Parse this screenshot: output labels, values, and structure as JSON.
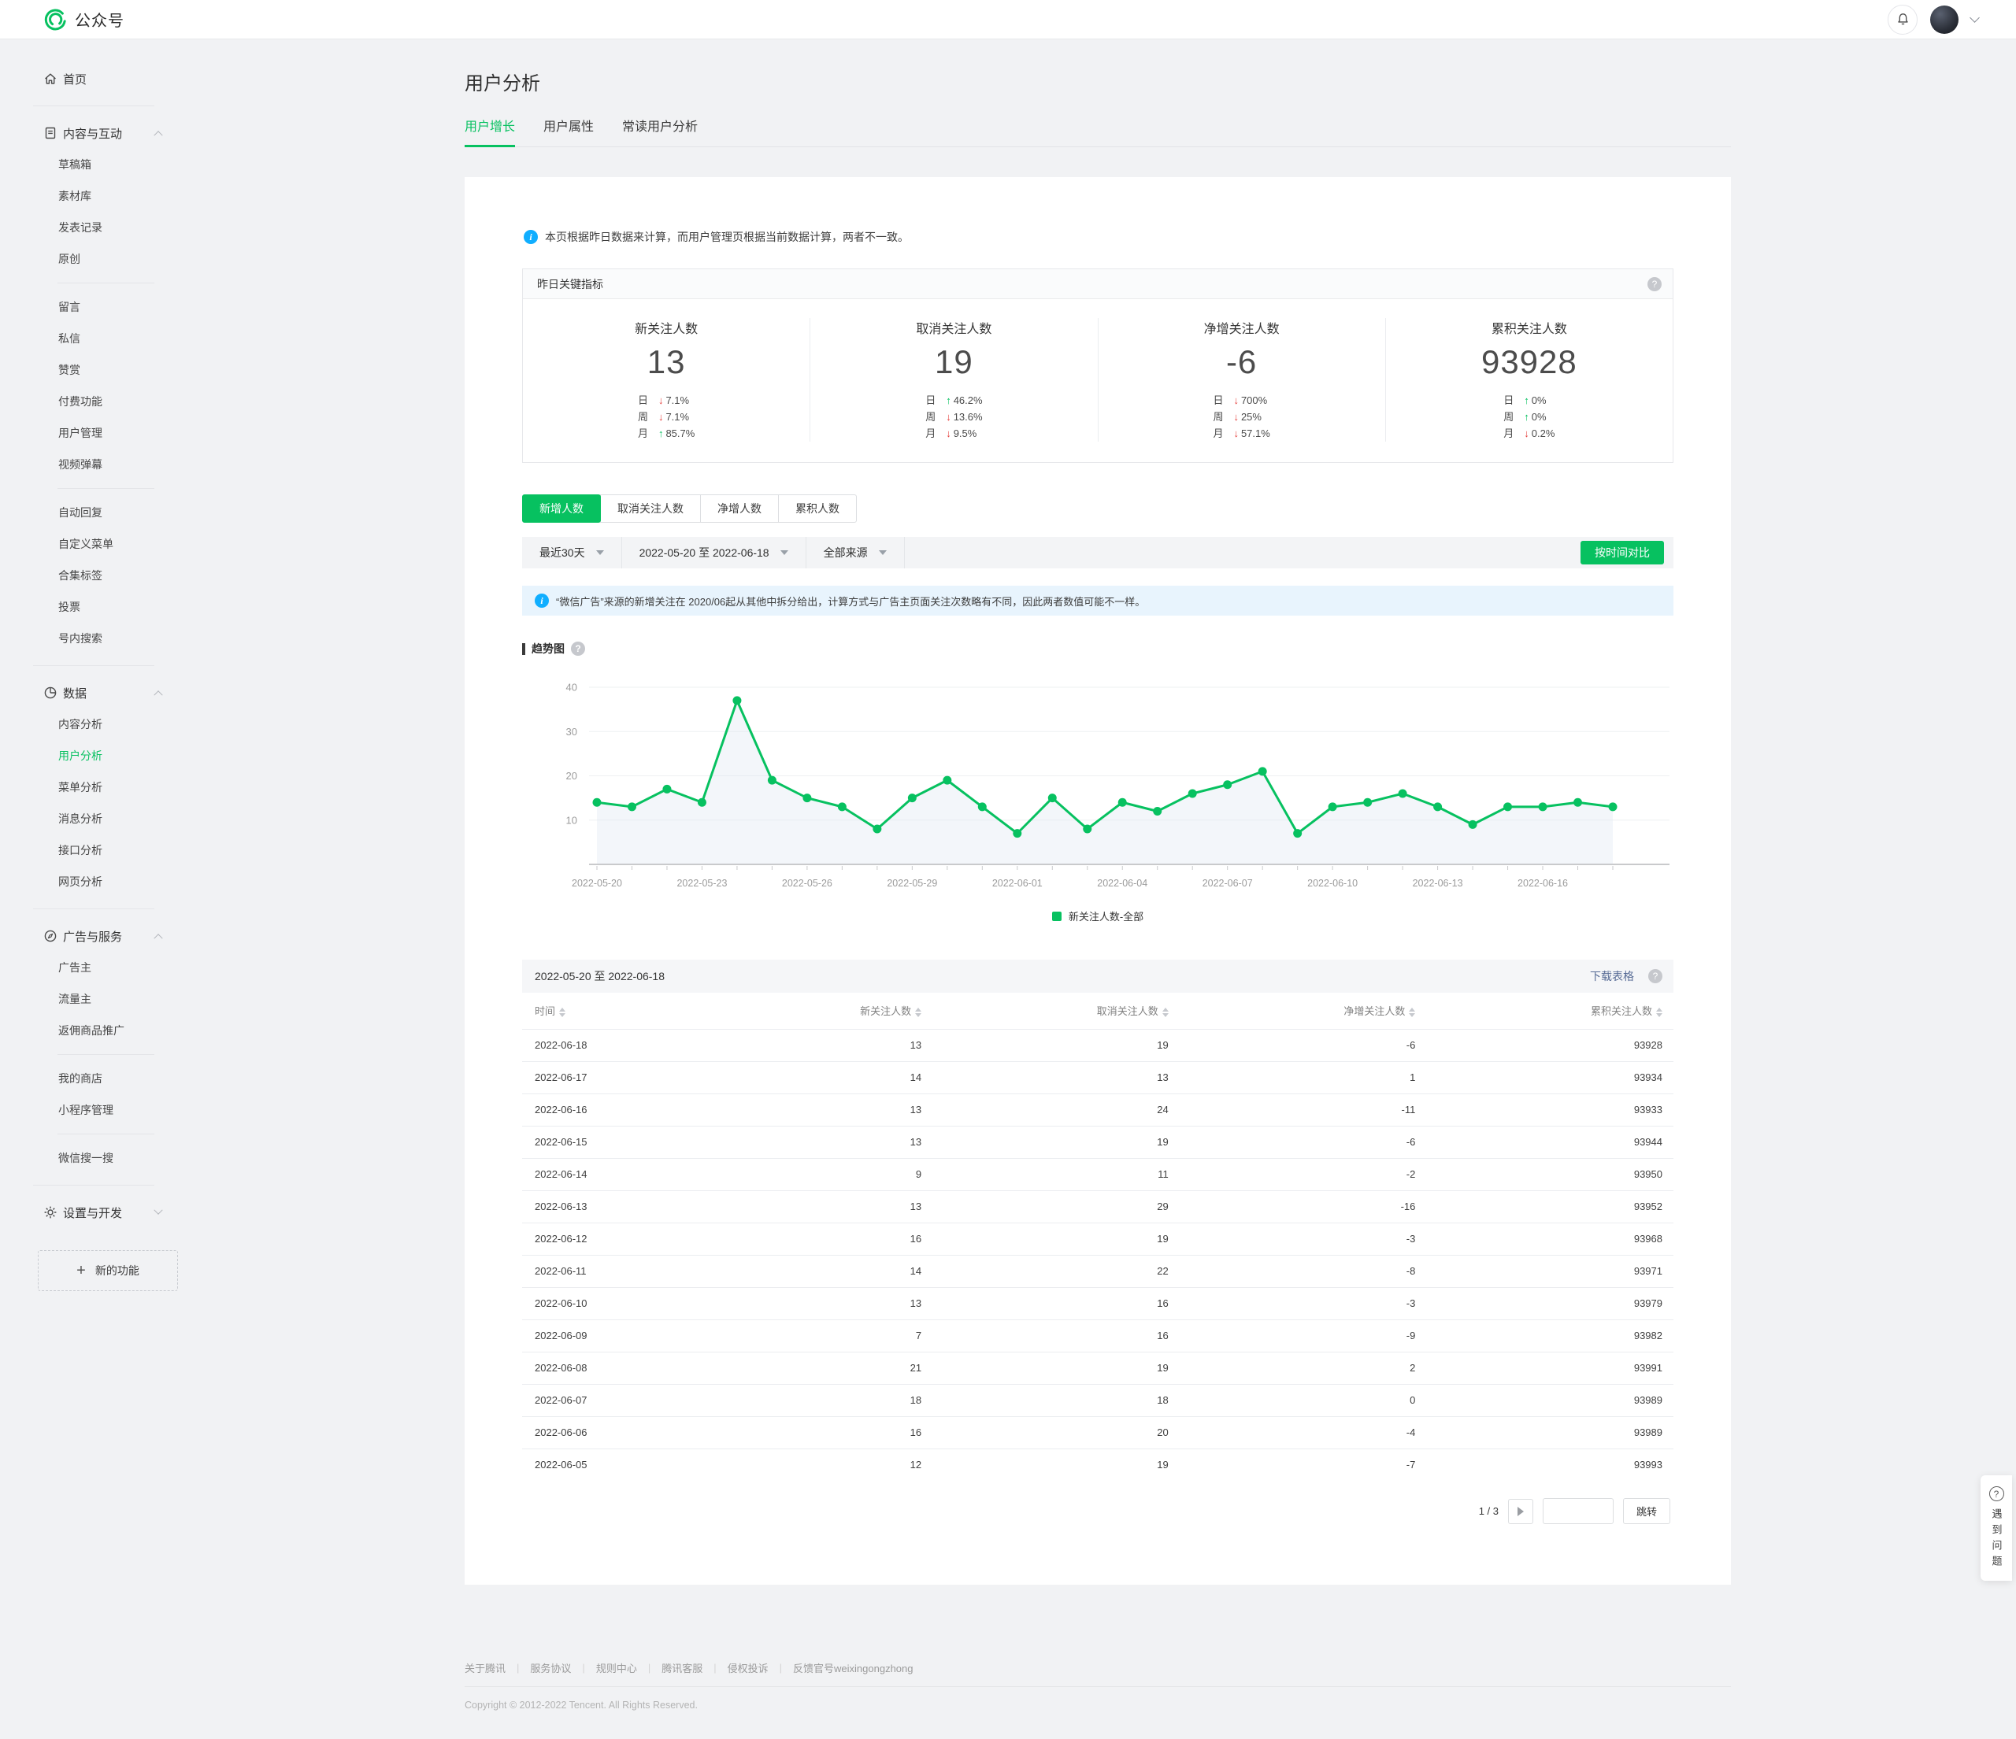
{
  "topbar": {
    "brand": "公众号"
  },
  "sidebar": {
    "items": [
      {
        "type": "item",
        "icon": "home",
        "label": "首页"
      },
      {
        "type": "divider"
      },
      {
        "type": "group",
        "icon": "doc",
        "label": "内容与互动",
        "arrow": "up"
      },
      {
        "type": "sub",
        "label": "草稿箱"
      },
      {
        "type": "sub",
        "label": "素材库"
      },
      {
        "type": "sub",
        "label": "发表记录"
      },
      {
        "type": "sub",
        "label": "原创"
      },
      {
        "type": "subdivider"
      },
      {
        "type": "sub",
        "label": "留言"
      },
      {
        "type": "sub",
        "label": "私信"
      },
      {
        "type": "sub",
        "label": "赞赏"
      },
      {
        "type": "sub",
        "label": "付费功能"
      },
      {
        "type": "sub",
        "label": "用户管理"
      },
      {
        "type": "sub",
        "label": "视频弹幕"
      },
      {
        "type": "subdivider"
      },
      {
        "type": "sub",
        "label": "自动回复"
      },
      {
        "type": "sub",
        "label": "自定义菜单"
      },
      {
        "type": "sub",
        "label": "合集标签"
      },
      {
        "type": "sub",
        "label": "投票"
      },
      {
        "type": "sub",
        "label": "号内搜索"
      },
      {
        "type": "divider"
      },
      {
        "type": "group",
        "icon": "pie",
        "label": "数据",
        "arrow": "up"
      },
      {
        "type": "sub",
        "label": "内容分析"
      },
      {
        "type": "sub",
        "label": "用户分析",
        "active": true
      },
      {
        "type": "sub",
        "label": "菜单分析"
      },
      {
        "type": "sub",
        "label": "消息分析"
      },
      {
        "type": "sub",
        "label": "接口分析"
      },
      {
        "type": "sub",
        "label": "网页分析"
      },
      {
        "type": "divider"
      },
      {
        "type": "group",
        "icon": "compass",
        "label": "广告与服务",
        "arrow": "up"
      },
      {
        "type": "sub",
        "label": "广告主"
      },
      {
        "type": "sub",
        "label": "流量主"
      },
      {
        "type": "sub",
        "label": "返佣商品推广"
      },
      {
        "type": "subdivider"
      },
      {
        "type": "sub",
        "label": "我的商店"
      },
      {
        "type": "sub",
        "label": "小程序管理"
      },
      {
        "type": "subdivider"
      },
      {
        "type": "sub",
        "label": "微信搜一搜"
      },
      {
        "type": "divider"
      },
      {
        "type": "group",
        "icon": "gear",
        "label": "设置与开发",
        "arrow": "down"
      },
      {
        "type": "newfeature",
        "label": "新的功能"
      }
    ]
  },
  "page": {
    "title": "用户分析",
    "tabs": [
      {
        "label": "用户增长",
        "active": true
      },
      {
        "label": "用户属性",
        "active": false
      },
      {
        "label": "常读用户分析",
        "active": false
      }
    ],
    "notice": "本页根据昨日数据来计算，而用户管理页根据当前数据计算，两者不一致。"
  },
  "metrics": {
    "header": "昨日关键指标",
    "cards": [
      {
        "title": "新关注人数",
        "value": "13",
        "rows": [
          {
            "label": "日",
            "dir": "down",
            "pct": "7.1%"
          },
          {
            "label": "周",
            "dir": "down",
            "pct": "7.1%"
          },
          {
            "label": "月",
            "dir": "up",
            "pct": "85.7%"
          }
        ]
      },
      {
        "title": "取消关注人数",
        "value": "19",
        "rows": [
          {
            "label": "日",
            "dir": "up",
            "pct": "46.2%"
          },
          {
            "label": "周",
            "dir": "down",
            "pct": "13.6%"
          },
          {
            "label": "月",
            "dir": "down",
            "pct": "9.5%"
          }
        ]
      },
      {
        "title": "净增关注人数",
        "value": "-6",
        "rows": [
          {
            "label": "日",
            "dir": "down",
            "pct": "700%"
          },
          {
            "label": "周",
            "dir": "down",
            "pct": "25%"
          },
          {
            "label": "月",
            "dir": "down",
            "pct": "57.1%"
          }
        ]
      },
      {
        "title": "累积关注人数",
        "value": "93928",
        "rows": [
          {
            "label": "日",
            "dir": "up",
            "pct": "0%"
          },
          {
            "label": "周",
            "dir": "up",
            "pct": "0%"
          },
          {
            "label": "月",
            "dir": "down",
            "pct": "0.2%"
          }
        ]
      }
    ]
  },
  "chart_tabs": [
    {
      "label": "新增人数",
      "active": true
    },
    {
      "label": "取消关注人数",
      "active": false
    },
    {
      "label": "净增人数",
      "active": false
    },
    {
      "label": "累积人数",
      "active": false
    }
  ],
  "filters": {
    "range_label": "最近30天",
    "date_range": "2022-05-20 至 2022-06-18",
    "source": "全部来源",
    "compare_button": "按时间对比"
  },
  "ad_notice": "“微信广告”来源的新增关注在 2020/06起从其他中拆分给出，计算方式与广告主页面关注次数略有不同，因此两者数值可能不一样。",
  "chart_data": {
    "type": "line",
    "title": "趋势图",
    "x": [
      "2022-05-20",
      "2022-05-21",
      "2022-05-22",
      "2022-05-23",
      "2022-05-24",
      "2022-05-25",
      "2022-05-26",
      "2022-05-27",
      "2022-05-28",
      "2022-05-29",
      "2022-05-30",
      "2022-05-31",
      "2022-06-01",
      "2022-06-02",
      "2022-06-03",
      "2022-06-04",
      "2022-06-05",
      "2022-06-06",
      "2022-06-07",
      "2022-06-08",
      "2022-06-09",
      "2022-06-10",
      "2022-06-11",
      "2022-06-12",
      "2022-06-13",
      "2022-06-14",
      "2022-06-15",
      "2022-06-16",
      "2022-06-17",
      "2022-06-18"
    ],
    "series": [
      {
        "name": "新关注人数-全部",
        "values": [
          14,
          13,
          17,
          14,
          37,
          19,
          15,
          13,
          8,
          15,
          19,
          13,
          7,
          15,
          8,
          14,
          12,
          16,
          18,
          21,
          7,
          13,
          14,
          16,
          13,
          9,
          13,
          13,
          14,
          13
        ]
      }
    ],
    "x_tick_every": 3,
    "y_ticks": [
      10,
      20,
      30,
      40
    ],
    "ylim": [
      0,
      44
    ],
    "grid": true,
    "legend_position": "bottom",
    "line_color": "#07c160"
  },
  "table": {
    "title": "2022-05-20 至 2022-06-18",
    "download_label": "下载表格",
    "columns": [
      "时间",
      "新关注人数",
      "取消关注人数",
      "净增关注人数",
      "累积关注人数"
    ],
    "rows": [
      [
        "2022-06-18",
        "13",
        "19",
        "-6",
        "93928"
      ],
      [
        "2022-06-17",
        "14",
        "13",
        "1",
        "93934"
      ],
      [
        "2022-06-16",
        "13",
        "24",
        "-11",
        "93933"
      ],
      [
        "2022-06-15",
        "13",
        "19",
        "-6",
        "93944"
      ],
      [
        "2022-06-14",
        "9",
        "11",
        "-2",
        "93950"
      ],
      [
        "2022-06-13",
        "13",
        "29",
        "-16",
        "93952"
      ],
      [
        "2022-06-12",
        "16",
        "19",
        "-3",
        "93968"
      ],
      [
        "2022-06-11",
        "14",
        "22",
        "-8",
        "93971"
      ],
      [
        "2022-06-10",
        "13",
        "16",
        "-3",
        "93979"
      ],
      [
        "2022-06-09",
        "7",
        "16",
        "-9",
        "93982"
      ],
      [
        "2022-06-08",
        "21",
        "19",
        "2",
        "93991"
      ],
      [
        "2022-06-07",
        "18",
        "18",
        "0",
        "93989"
      ],
      [
        "2022-06-06",
        "16",
        "20",
        "-4",
        "93989"
      ],
      [
        "2022-06-05",
        "12",
        "19",
        "-7",
        "93993"
      ]
    ]
  },
  "pagination": {
    "label": "1 / 3",
    "jump_label": "跳转",
    "input_value": ""
  },
  "footer": {
    "links": [
      "关于腾讯",
      "服务协议",
      "规则中心",
      "腾讯客服",
      "侵权投诉",
      "反馈官号weixingongzhong"
    ],
    "copyright": "Copyright © 2012-2022 Tencent. All Rights Reserved."
  },
  "help_widget": {
    "label": "遇到问题"
  },
  "colors": {
    "accent": "#07c160",
    "up": "#07c160",
    "down": "#e64340",
    "link": "#576b95",
    "info": "#10aeff"
  }
}
